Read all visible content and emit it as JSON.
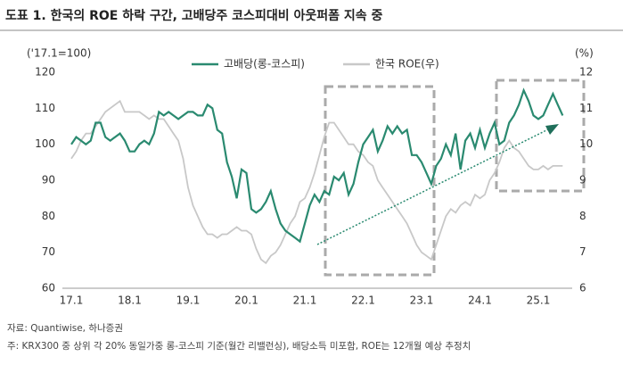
{
  "chart_data": {
    "type": "line",
    "title": "도표 1. 한국의 ROE 하락 구간, 고배당주 코스피대비 아웃퍼폼 지속 중",
    "y_label": "('17.1=100)",
    "y2_label": "(%)",
    "source": "자료: Quantiwise, 하나증권",
    "note": "주: KRX300 중 상위 각 20% 동일가중 롱-코스피 기준(월간 리밸런싱), 배당소득 미포함, ROE는 12개월 예상 추정치",
    "categories": [
      "17.1",
      null,
      null,
      null,
      null,
      null,
      null,
      null,
      null,
      null,
      null,
      null,
      "18.1",
      null,
      null,
      null,
      null,
      null,
      null,
      null,
      null,
      null,
      null,
      null,
      "19.1",
      null,
      null,
      null,
      null,
      null,
      null,
      null,
      null,
      null,
      null,
      null,
      "20.1",
      null,
      null,
      null,
      null,
      null,
      null,
      null,
      null,
      null,
      null,
      null,
      "21.1",
      null,
      null,
      null,
      null,
      null,
      null,
      null,
      null,
      null,
      null,
      null,
      "22.1",
      null,
      null,
      null,
      null,
      null,
      null,
      null,
      null,
      null,
      null,
      null,
      "23.1",
      null,
      null,
      null,
      null,
      null,
      null,
      null,
      null,
      null,
      null,
      null,
      "24.1",
      null,
      null,
      null,
      null,
      null,
      null,
      null,
      null,
      null,
      null,
      null,
      "25.1",
      null,
      null,
      null,
      null,
      null
    ],
    "series": [
      {
        "name": "고배당(롱-코스피)",
        "color": "#2a8a70",
        "axis": "y",
        "values": [
          100,
          102,
          101,
          100,
          101,
          106,
          106,
          102,
          101,
          102,
          103,
          101,
          98,
          98,
          100,
          101,
          100,
          103,
          109,
          108,
          109,
          108,
          107,
          108,
          109,
          109,
          108,
          108,
          111,
          110,
          104,
          103,
          95,
          91,
          85,
          93,
          92,
          82,
          81,
          82,
          84,
          87,
          82,
          78,
          76,
          75,
          74,
          73,
          78,
          83,
          86,
          84,
          87,
          86,
          91,
          90,
          92,
          86,
          89,
          95,
          100,
          102,
          104,
          98,
          101,
          105,
          103,
          105,
          103,
          104,
          97,
          97,
          95,
          92,
          89,
          94,
          96,
          100,
          97,
          103,
          93,
          101,
          103,
          99,
          104,
          99,
          103,
          106,
          100,
          101,
          106,
          108,
          111,
          115,
          112,
          108,
          107,
          108,
          111,
          114,
          111,
          108
        ]
      },
      {
        "name": "한국 ROE(우)",
        "color": "#c8c8c8",
        "axis": "y2",
        "values": [
          9.6,
          9.8,
          10.1,
          10.3,
          10.3,
          10.5,
          10.7,
          10.9,
          11.0,
          11.1,
          11.2,
          10.9,
          10.9,
          10.9,
          10.9,
          10.8,
          10.7,
          10.8,
          10.7,
          10.7,
          10.5,
          10.3,
          10.1,
          9.6,
          8.8,
          8.3,
          8.0,
          7.7,
          7.5,
          7.5,
          7.4,
          7.5,
          7.5,
          7.6,
          7.7,
          7.6,
          7.6,
          7.5,
          7.1,
          6.8,
          6.7,
          6.9,
          7.0,
          7.2,
          7.5,
          7.8,
          8.0,
          8.4,
          8.5,
          8.8,
          9.2,
          9.7,
          10.2,
          10.6,
          10.6,
          10.4,
          10.2,
          10.0,
          10.0,
          9.8,
          9.7,
          9.5,
          9.4,
          9.0,
          8.8,
          8.6,
          8.4,
          8.2,
          8.0,
          7.8,
          7.5,
          7.2,
          7.0,
          6.9,
          6.8,
          7.2,
          7.6,
          8.0,
          8.2,
          8.1,
          8.3,
          8.4,
          8.3,
          8.6,
          8.5,
          8.6,
          9.0,
          9.2,
          9.5,
          9.9,
          10.1,
          9.9,
          9.8,
          9.6,
          9.4,
          9.3,
          9.3,
          9.4,
          9.3,
          9.4,
          9.4,
          9.4
        ]
      }
    ],
    "ylim": [
      60,
      120
    ],
    "yticks": [
      60,
      70,
      80,
      90,
      100,
      110,
      120
    ],
    "y2lim": [
      6,
      12
    ],
    "y2ticks": [
      6,
      7,
      8,
      9,
      10,
      11,
      12
    ]
  }
}
